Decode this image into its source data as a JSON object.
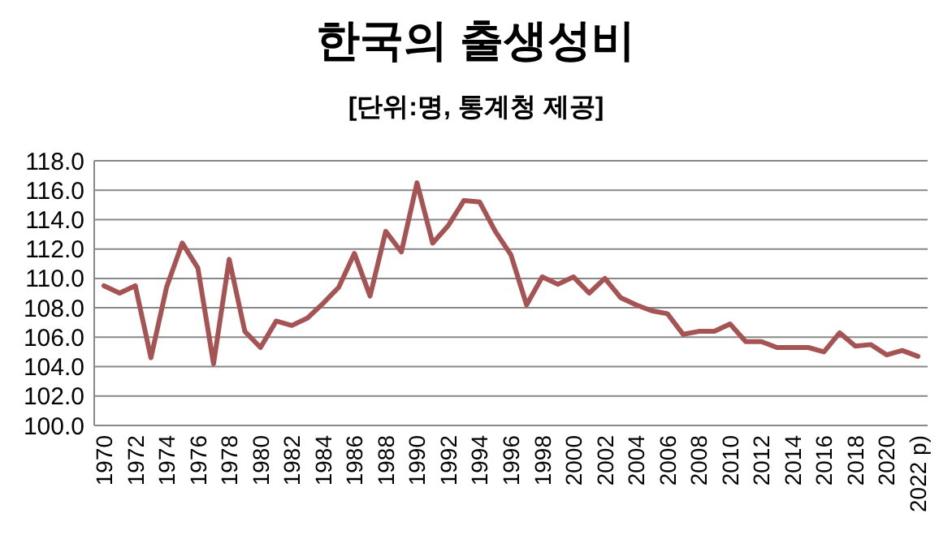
{
  "chart_data": {
    "type": "line",
    "title": "한국의 출생성비",
    "subtitle": "[단위:명, 통계청 제공]",
    "categories": [
      "1970",
      null,
      "1972",
      null,
      "1974",
      null,
      "1976",
      null,
      "1978",
      null,
      "1980",
      null,
      "1982",
      null,
      "1984",
      null,
      "1986",
      null,
      "1988",
      null,
      "1990",
      null,
      "1992",
      null,
      "1994",
      null,
      "1996",
      null,
      "1998",
      null,
      "2000",
      null,
      "2002",
      null,
      "2004",
      null,
      "2006",
      null,
      "2008",
      null,
      "2010",
      null,
      "2012",
      null,
      "2014",
      null,
      "2016",
      null,
      "2018",
      null,
      "2020",
      null,
      "2022 p)"
    ],
    "series": [
      {
        "color": "#a65353",
        "values": [
          109.5,
          109.0,
          109.5,
          104.6,
          109.4,
          112.4,
          110.7,
          104.2,
          111.3,
          106.4,
          105.3,
          107.1,
          106.8,
          107.3,
          108.3,
          109.4,
          111.7,
          108.8,
          113.2,
          111.8,
          116.5,
          112.4,
          113.6,
          115.3,
          115.2,
          113.2,
          111.6,
          108.2,
          110.1,
          109.6,
          110.1,
          109.0,
          110.0,
          108.7,
          108.2,
          107.8,
          107.6,
          106.2,
          106.4,
          106.4,
          106.9,
          105.7,
          105.7,
          105.3,
          105.3,
          105.3,
          105.0,
          106.3,
          105.4,
          105.5,
          104.8,
          105.1,
          104.7
        ]
      }
    ],
    "ylim": [
      100,
      118
    ],
    "yticks": [
      {
        "value": 100,
        "label": "100.0"
      },
      {
        "value": 102,
        "label": "102.0"
      },
      {
        "value": 104,
        "label": "104.0"
      },
      {
        "value": 106,
        "label": "106.0"
      },
      {
        "value": 108,
        "label": "108.0"
      },
      {
        "value": 110,
        "label": "110.0"
      },
      {
        "value": 112,
        "label": "112.0"
      },
      {
        "value": 114,
        "label": "114.0"
      },
      {
        "value": 116,
        "label": "116.0"
      },
      {
        "value": 118,
        "label": "118.0"
      }
    ],
    "grid": "y",
    "marker": "none",
    "line_style": "solid"
  }
}
